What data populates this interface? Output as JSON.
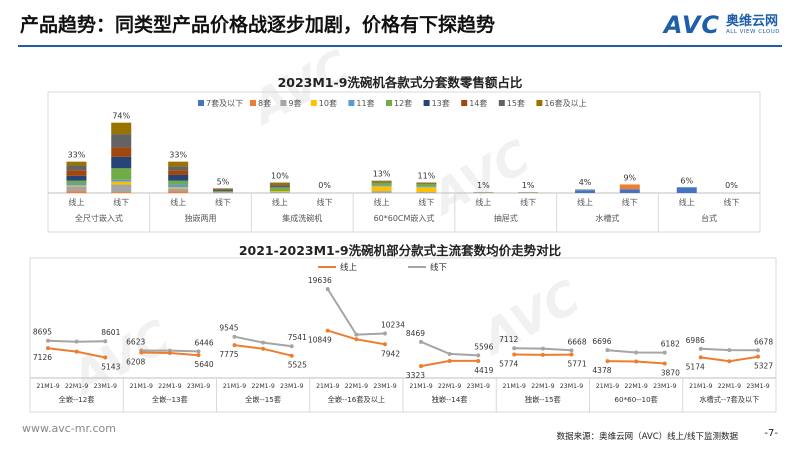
{
  "header": {
    "title": "产品趋势：同类型产品价格战逐步加剧，价格有下探趋势",
    "logo_text": "AVC",
    "logo_cn": "奥维云网",
    "logo_en": "ALL VIEW CLOUD"
  },
  "colors": {
    "brand": "#1f5faa",
    "online": "#ed7d31",
    "offline": "#a5a5a5"
  },
  "chart_data": [
    {
      "type": "stacked-bar",
      "title": "2023M1-9洗碗机各款式分套数零售额占比",
      "legend": [
        {
          "name": "7套及以下",
          "color": "#4472c4"
        },
        {
          "name": "8套",
          "color": "#ed7d31"
        },
        {
          "name": "9套",
          "color": "#a5a5a5"
        },
        {
          "name": "10套",
          "color": "#ffc000"
        },
        {
          "name": "11套",
          "color": "#5b9bd5"
        },
        {
          "name": "12套",
          "color": "#70ad47"
        },
        {
          "name": "13套",
          "color": "#264478"
        },
        {
          "name": "14套",
          "color": "#9e480e"
        },
        {
          "name": "15套",
          "color": "#636363"
        },
        {
          "name": "16套及以上",
          "color": "#997300"
        }
      ],
      "groups": [
        {
          "name": "全尺寸嵌入式",
          "bars": [
            {
              "label": "线上",
              "total_label": "33%",
              "values": [
                0,
                2,
                5,
                1,
                2,
                3,
                5,
                6,
                5,
                4
              ]
            },
            {
              "label": "线下",
              "total_label": "74%",
              "values": [
                0,
                1,
                8,
                3,
                2,
                12,
                12,
                10,
                14,
                12
              ]
            }
          ]
        },
        {
          "name": "独嵌两用",
          "bars": [
            {
              "label": "线上",
              "total_label": "33%",
              "values": [
                0,
                2,
                3,
                1,
                3,
                4,
                6,
                5,
                4,
                5
              ]
            },
            {
              "label": "线下",
              "total_label": "5%",
              "values": [
                0,
                0,
                1,
                0,
                0,
                1,
                1,
                1,
                0.5,
                0.5
              ]
            }
          ]
        },
        {
          "name": "集成洗碗机",
          "bars": [
            {
              "label": "线上",
              "total_label": "10%",
              "values": [
                0,
                0,
                1,
                1,
                0,
                4,
                1,
                1,
                1,
                2
              ]
            },
            {
              "label": "线下",
              "total_label": "0%",
              "values": [
                0,
                0,
                0,
                0,
                0,
                0,
                0,
                0,
                0,
                0
              ]
            }
          ]
        },
        {
          "name": "60*60CM嵌入式",
          "bars": [
            {
              "label": "线上",
              "total_label": "13%",
              "values": [
                0,
                0,
                2,
                5,
                1,
                3,
                0,
                1,
                0.5,
                0.5
              ]
            },
            {
              "label": "线下",
              "total_label": "11%",
              "values": [
                0,
                0,
                1,
                5,
                1,
                3,
                0,
                1,
                0,
                0
              ]
            }
          ]
        },
        {
          "name": "抽屉式",
          "bars": [
            {
              "label": "线上",
              "total_label": "1%",
              "values": [
                0.4,
                0,
                0.3,
                0.3,
                0,
                0,
                0,
                0,
                0,
                0
              ]
            },
            {
              "label": "线下",
              "total_label": "1%",
              "values": [
                0.4,
                0,
                0.3,
                0.3,
                0,
                0,
                0,
                0,
                0,
                0
              ]
            }
          ]
        },
        {
          "name": "水槽式",
          "bars": [
            {
              "label": "线上",
              "total_label": "4%",
              "values": [
                3,
                0,
                1,
                0,
                0,
                0,
                0,
                0,
                0,
                0
              ]
            },
            {
              "label": "线下",
              "total_label": "9%",
              "values": [
                4,
                5,
                0,
                0,
                0,
                0,
                0,
                0,
                0,
                0
              ]
            }
          ]
        },
        {
          "name": "台式",
          "bars": [
            {
              "label": "线上",
              "total_label": "6%",
              "values": [
                6,
                0,
                0,
                0,
                0,
                0,
                0,
                0,
                0,
                0
              ]
            },
            {
              "label": "线下",
              "total_label": "0%",
              "values": [
                0,
                0,
                0,
                0,
                0,
                0,
                0,
                0,
                0,
                0
              ]
            }
          ]
        }
      ]
    },
    {
      "type": "line",
      "title": "2021-2023M1-9洗碗机部分款式主流套数均价走势对比",
      "legend": [
        {
          "name": "线上",
          "color": "#ed7d31"
        },
        {
          "name": "线下",
          "color": "#a5a5a5"
        }
      ],
      "x": [
        "21M1-9",
        "22M1-9",
        "23M1-9"
      ],
      "ylim": [
        2500,
        20500
      ],
      "groups": [
        {
          "name": "全嵌--12套",
          "online": [
            7126,
            6400,
            5143
          ],
          "offline": [
            8695,
            8500,
            8601
          ]
        },
        {
          "name": "全嵌--13套",
          "online": [
            6208,
            6100,
            5640
          ],
          "offline": [
            6623,
            6600,
            6446
          ]
        },
        {
          "name": "全嵌--15套",
          "online": [
            7775,
            7000,
            5525
          ],
          "offline": [
            9545,
            8300,
            7541
          ]
        },
        {
          "name": "全嵌--16套及以上",
          "online": [
            10849,
            9000,
            7942
          ],
          "offline": [
            19636,
            10000,
            10234
          ]
        },
        {
          "name": "独嵌--14套",
          "online": [
            3323,
            4419,
            4419
          ],
          "offline": [
            8469,
            5900,
            5596
          ]
        },
        {
          "name": "独嵌--15套",
          "online": [
            5774,
            5700,
            5771
          ],
          "offline": [
            7112,
            7024,
            6668
          ]
        },
        {
          "name": "60*60--10套",
          "online": [
            4378,
            4300,
            3870
          ],
          "offline": [
            6696,
            6200,
            6182
          ]
        },
        {
          "name": "水槽式--7套及以下",
          "online": [
            5174,
            4366,
            5327
          ],
          "offline": [
            6986,
            6706,
            6678
          ]
        }
      ]
    }
  ],
  "watermark": "AVC",
  "footer": {
    "url": "www.avc-mr.com",
    "source": "数据来源：奥维云网（AVC）线上/线下监测数据",
    "page": "-7-"
  }
}
